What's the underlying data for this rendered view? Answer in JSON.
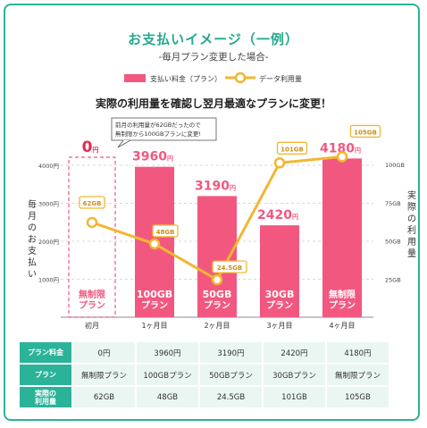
{
  "title": "お支払いイメージ（一例）",
  "subtitle": "-毎月プラン変更した場合-",
  "legend": {
    "bar": "支払い料金（プラン）",
    "line": "データ利用量"
  },
  "headline": "実際の利用量を確認し翌月最適なプランに変更！",
  "note": [
    "前月の利用量が62GBだったので",
    "無制限から100GBプランに変更!"
  ],
  "colors": {
    "bar": "#f2587f",
    "line": "#f2b632",
    "accent": "#2bb39a",
    "grid": "#cccccc"
  },
  "chart_data": {
    "type": "bar",
    "categories": [
      "初月",
      "1ヶ月目",
      "2ヶ月目",
      "3ヶ月目",
      "4ヶ月目"
    ],
    "ylabel": "毎月のお支払い",
    "y2label": "実際の利用量",
    "ylim": [
      0,
      4000
    ],
    "y2lim": [
      0,
      100
    ],
    "yticks": [
      "1000円",
      "2000円",
      "3000円",
      "4000円"
    ],
    "y2ticks": [
      "25GB",
      "50GB",
      "75GB",
      "100GB"
    ],
    "series": [
      {
        "name": "支払い料金（プラン）",
        "type": "bar",
        "values": [
          0,
          3960,
          3190,
          2420,
          4180
        ],
        "value_labels": [
          "0",
          "3960",
          "3190",
          "2420",
          "4180"
        ],
        "unit": "円",
        "plan_labels": [
          [
            "無制限",
            "プラン"
          ],
          [
            "100GB",
            "プラン"
          ],
          [
            "50GB",
            "プラン"
          ],
          [
            "30GB",
            "プラン"
          ],
          [
            "無制限",
            "プラン"
          ]
        ]
      },
      {
        "name": "データ利用量",
        "type": "line",
        "axis": "y2",
        "values": [
          62,
          48,
          24.5,
          101,
          105
        ],
        "labels": [
          "62GB",
          "48GB",
          "24.5GB",
          "101GB",
          "105GB"
        ]
      }
    ],
    "grid": true
  },
  "table": {
    "rows": [
      {
        "header": "プラン料金",
        "cells": [
          "0円",
          "3960円",
          "3190円",
          "2420円",
          "4180円"
        ]
      },
      {
        "header": "プラン",
        "cells": [
          "無制限プラン",
          "100GBプラン",
          "50GBプラン",
          "30GBプラン",
          "無制限プラン"
        ]
      },
      {
        "header": "実際の\n利用量",
        "cells": [
          "62GB",
          "48GB",
          "24.5GB",
          "101GB",
          "105GB"
        ]
      }
    ]
  }
}
